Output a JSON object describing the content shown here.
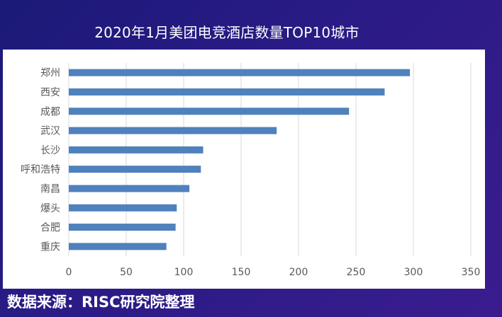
{
  "title": "2020年1月美团电竞酒店数量TOP10城市",
  "source_note": "数据来源：RISC研究院整理",
  "colors": {
    "bar": "#4f81bd",
    "grid": "#d9d9d9",
    "axis_text": "#595959"
  },
  "chart_data": {
    "type": "bar",
    "orientation": "horizontal",
    "title": "2020年1月美团电竞酒店数量TOP10城市",
    "categories": [
      "郑州",
      "西安",
      "成都",
      "武汉",
      "长沙",
      "呼和浩特",
      "南昌",
      "爆头",
      "合肥",
      "重庆"
    ],
    "values": [
      297,
      275,
      244,
      181,
      117,
      115,
      105,
      94,
      93,
      85
    ],
    "xlim": [
      0,
      350
    ],
    "xticks": [
      "0",
      "50",
      "100",
      "150",
      "200",
      "250",
      "300",
      "350"
    ],
    "grid": true,
    "legend": false
  }
}
